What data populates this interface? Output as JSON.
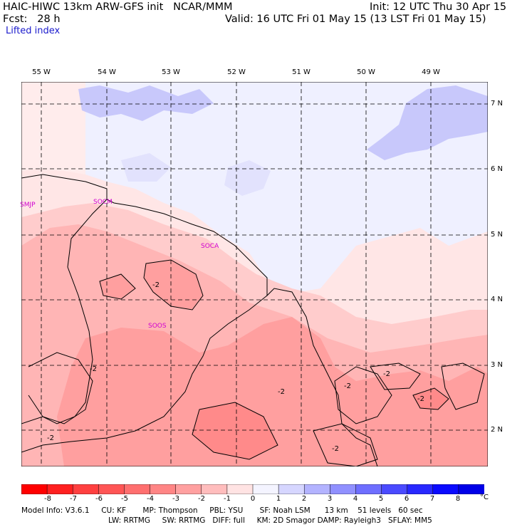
{
  "header": {
    "line1_left": "HAIC-HIWC 13km ARW-GFS init   NCAR/MMM",
    "line1_right": "Init: 12 UTC Thu 30 Apr 15",
    "line2_left": "Fcst:   28 h",
    "line2_right": "Valid: 16 UTC Fri 01 May 15 (13 LST Fri 01 May 15)",
    "field": "Lifted index"
  },
  "map": {
    "lon_labels": [
      "55 W",
      "54 W",
      "53 W",
      "52 W",
      "51 W",
      "50 W",
      "49 W"
    ],
    "lat_labels": [
      "7 N",
      "6 N",
      "5 N",
      "4 N",
      "3 N",
      "2 N"
    ],
    "stations": [
      {
        "id": "SMJP"
      },
      {
        "id": "SOCM"
      },
      {
        "id": "SOCA"
      },
      {
        "id": "SOOS"
      }
    ],
    "contour_labels": [
      "-2",
      "-2",
      "-2",
      "-2",
      "-2",
      "-2",
      "-2",
      "-2"
    ]
  },
  "colorbar": {
    "ticks": [
      "-8",
      "-7",
      "-6",
      "-5",
      "-4",
      "-3",
      "-2",
      "-1",
      "0",
      "1",
      "2",
      "3",
      "4",
      "5",
      "6",
      "7",
      "8"
    ],
    "unit": "°C",
    "colors": [
      "#ff0000",
      "#ff2020",
      "#ff4040",
      "#ff5555",
      "#ff6f6f",
      "#ff8585",
      "#ffa0a0",
      "#ffbdbd",
      "#ffe3e3",
      "#f4f4ff",
      "#d6d6ff",
      "#b3b3ff",
      "#9090ff",
      "#6e6eff",
      "#4a4aff",
      "#2828ff",
      "#0a0aff",
      "#0000e8"
    ]
  },
  "footer": {
    "line1": "Model Info: V3.6.1     CU: KF       MP: Thompson     PBL: YSU       SF: Noah LSM      13 km    51 levels   60 sec",
    "line2": "LW: RRTMG     SW: RRTMG   DIFF: full     KM: 2D Smagor DAMP: Rayleigh3   SFLAY: MM5"
  }
}
